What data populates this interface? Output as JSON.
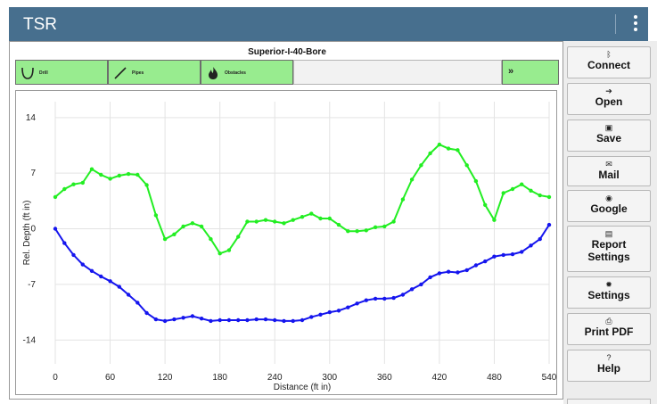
{
  "appbar": {
    "title": "TSR",
    "menu_icon": "more-vert-icon"
  },
  "bore": {
    "title": "Superior-I-40-Bore"
  },
  "tools": {
    "drill_label": "Drill",
    "pipes_label": "Pipes",
    "obstacles_label": "Obstacles",
    "next_label": "»"
  },
  "sidebar": {
    "connect": {
      "label": "Connect",
      "icon": "bluetooth-icon"
    },
    "open": {
      "label": "Open",
      "icon": "open-icon"
    },
    "save": {
      "label": "Save",
      "icon": "save-icon"
    },
    "mail": {
      "label": "Mail",
      "icon": "mail-icon"
    },
    "google": {
      "label": "Google",
      "icon": "google-icon"
    },
    "report_settings": {
      "label_line1": "Report",
      "label_line2": "Settings",
      "icon": "report-icon"
    },
    "settings": {
      "label": "Settings",
      "icon": "gear-icon"
    },
    "print_pdf": {
      "label": "Print PDF",
      "icon": "print-icon"
    },
    "help": {
      "label": "Help",
      "icon": "help-icon"
    }
  },
  "chart_data": {
    "type": "line",
    "xlabel": "Distance (ft in)",
    "ylabel": "Rel. Depth (ft in)",
    "xlim": [
      0,
      540
    ],
    "ylim": [
      -17,
      16
    ],
    "x_ticks": [
      "0",
      "60",
      "120",
      "180",
      "240",
      "300",
      "360",
      "420",
      "480",
      "540"
    ],
    "y_ticks": [
      "14",
      "7",
      "0",
      "-7",
      "-14"
    ],
    "x_tick_values": [
      0,
      60,
      120,
      180,
      240,
      300,
      360,
      420,
      480,
      540
    ],
    "y_tick_values": [
      14,
      7,
      0,
      -7,
      -14
    ],
    "grid": true,
    "series": [
      {
        "color": "#22ee22",
        "points": [
          [
            0,
            4
          ],
          [
            10,
            5
          ],
          [
            20,
            5.6
          ],
          [
            30,
            5.8
          ],
          [
            40,
            7.5
          ],
          [
            50,
            6.8
          ],
          [
            60,
            6.3
          ],
          [
            70,
            6.7
          ],
          [
            80,
            6.9
          ],
          [
            90,
            6.8
          ],
          [
            100,
            5.5
          ],
          [
            110,
            1.7
          ],
          [
            120,
            -1.3
          ],
          [
            130,
            -0.7
          ],
          [
            140,
            0.3
          ],
          [
            150,
            0.7
          ],
          [
            160,
            0.3
          ],
          [
            170,
            -1.3
          ],
          [
            180,
            -3.1
          ],
          [
            190,
            -2.7
          ],
          [
            200,
            -1
          ],
          [
            210,
            0.9
          ],
          [
            220,
            0.9
          ],
          [
            230,
            1.1
          ],
          [
            240,
            0.9
          ],
          [
            250,
            0.7
          ],
          [
            260,
            1.1
          ],
          [
            270,
            1.5
          ],
          [
            280,
            1.9
          ],
          [
            290,
            1.3
          ],
          [
            300,
            1.3
          ],
          [
            310,
            0.5
          ],
          [
            320,
            -0.3
          ],
          [
            330,
            -0.3
          ],
          [
            340,
            -0.2
          ],
          [
            350,
            0.2
          ],
          [
            360,
            0.3
          ],
          [
            370,
            0.9
          ],
          [
            380,
            3.7
          ],
          [
            390,
            6.2
          ],
          [
            400,
            8
          ],
          [
            410,
            9.5
          ],
          [
            420,
            10.6
          ],
          [
            430,
            10.1
          ],
          [
            440,
            9.9
          ],
          [
            450,
            8
          ],
          [
            460,
            6
          ],
          [
            470,
            3
          ],
          [
            480,
            1.1
          ],
          [
            490,
            4.5
          ],
          [
            500,
            5
          ],
          [
            510,
            5.6
          ],
          [
            520,
            4.8
          ],
          [
            530,
            4.2
          ],
          [
            540,
            4
          ]
        ]
      },
      {
        "color": "#1515ee",
        "points": [
          [
            0,
            0
          ],
          [
            10,
            -1.8
          ],
          [
            20,
            -3.3
          ],
          [
            30,
            -4.5
          ],
          [
            40,
            -5.3
          ],
          [
            50,
            -6
          ],
          [
            60,
            -6.6
          ],
          [
            70,
            -7.3
          ],
          [
            80,
            -8.3
          ],
          [
            90,
            -9.3
          ],
          [
            100,
            -10.6
          ],
          [
            110,
            -11.4
          ],
          [
            120,
            -11.6
          ],
          [
            130,
            -11.4
          ],
          [
            140,
            -11.2
          ],
          [
            150,
            -11.0
          ],
          [
            160,
            -11.3
          ],
          [
            170,
            -11.6
          ],
          [
            180,
            -11.5
          ],
          [
            190,
            -11.5
          ],
          [
            200,
            -11.5
          ],
          [
            210,
            -11.5
          ],
          [
            220,
            -11.4
          ],
          [
            230,
            -11.4
          ],
          [
            240,
            -11.5
          ],
          [
            250,
            -11.6
          ],
          [
            260,
            -11.6
          ],
          [
            270,
            -11.5
          ],
          [
            280,
            -11.1
          ],
          [
            290,
            -10.8
          ],
          [
            300,
            -10.5
          ],
          [
            310,
            -10.3
          ],
          [
            320,
            -9.9
          ],
          [
            330,
            -9.4
          ],
          [
            340,
            -9
          ],
          [
            350,
            -8.8
          ],
          [
            360,
            -8.8
          ],
          [
            370,
            -8.7
          ],
          [
            380,
            -8.3
          ],
          [
            390,
            -7.6
          ],
          [
            400,
            -7
          ],
          [
            410,
            -6.1
          ],
          [
            420,
            -5.6
          ],
          [
            430,
            -5.4
          ],
          [
            440,
            -5.5
          ],
          [
            450,
            -5.2
          ],
          [
            460,
            -4.6
          ],
          [
            470,
            -4.1
          ],
          [
            480,
            -3.5
          ],
          [
            490,
            -3.3
          ],
          [
            500,
            -3.2
          ],
          [
            510,
            -2.9
          ],
          [
            520,
            -2.1
          ],
          [
            530,
            -1.3
          ],
          [
            540,
            0.5
          ]
        ]
      }
    ]
  }
}
